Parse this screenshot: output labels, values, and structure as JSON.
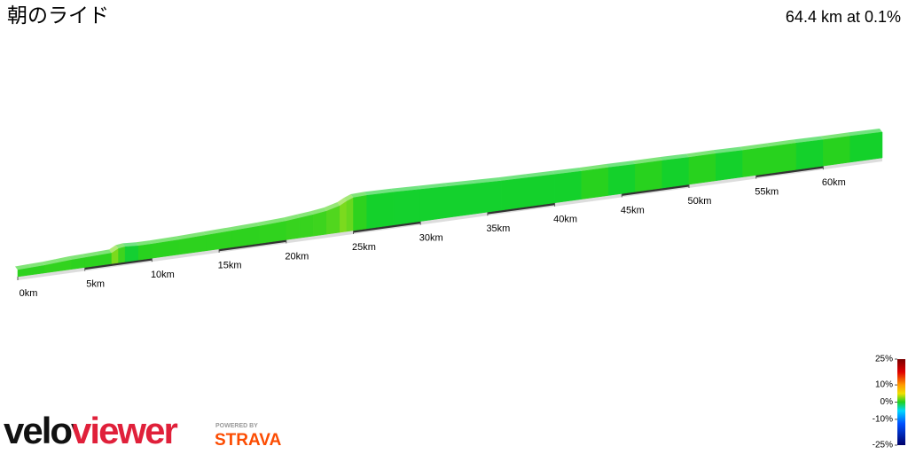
{
  "title": "朝のライド",
  "summary": "64.4 km at 0.1%",
  "chart_data": {
    "type": "profile",
    "x": [
      0,
      1,
      2,
      3,
      4,
      5,
      6,
      7,
      7.5,
      8,
      9,
      10,
      12,
      14,
      16,
      18,
      20,
      21,
      22,
      23,
      24,
      24.5,
      25,
      26,
      28,
      30,
      32,
      34,
      36,
      38,
      40,
      42,
      44,
      46,
      48,
      50,
      52,
      54,
      56,
      58,
      60,
      62,
      64.4
    ],
    "series": [
      {
        "name": "Elevation",
        "values": [
          5,
          6,
          7,
          9,
          11,
          12,
          13,
          14,
          22,
          24,
          22,
          22,
          23,
          25,
          27,
          29,
          32,
          35,
          38,
          42,
          50,
          58,
          64,
          65,
          64,
          62,
          60,
          58,
          56,
          55,
          54,
          53,
          53,
          52,
          52,
          51,
          51,
          50,
          50,
          50,
          49,
          49,
          48
        ]
      }
    ],
    "xlim": [
      0,
      64.4
    ],
    "ylim": [
      -10,
      100
    ],
    "xticks": [
      {
        "value": 0,
        "label": "0km"
      },
      {
        "value": 5,
        "label": "5km"
      },
      {
        "value": 10,
        "label": "10km"
      },
      {
        "value": 15,
        "label": "15km"
      },
      {
        "value": 20,
        "label": "20km"
      },
      {
        "value": 25,
        "label": "25km"
      },
      {
        "value": 30,
        "label": "30km"
      },
      {
        "value": 35,
        "label": "35km"
      },
      {
        "value": 40,
        "label": "40km"
      },
      {
        "value": 45,
        "label": "45km"
      },
      {
        "value": 50,
        "label": "50km"
      },
      {
        "value": 55,
        "label": "55km"
      },
      {
        "value": 60,
        "label": "60km"
      }
    ],
    "colorbar": {
      "lim": [
        -25,
        25
      ],
      "ticks": [
        {
          "value": 25,
          "label": "25%"
        },
        {
          "value": 10,
          "label": "10%"
        },
        {
          "value": 0,
          "label": "0%"
        },
        {
          "value": -10,
          "label": "-10%"
        },
        {
          "value": -25,
          "label": "-25%"
        }
      ]
    }
  },
  "logo": {
    "brand": "veloviewer",
    "powered": "POWERED BY",
    "strava": "STRAVA"
  }
}
